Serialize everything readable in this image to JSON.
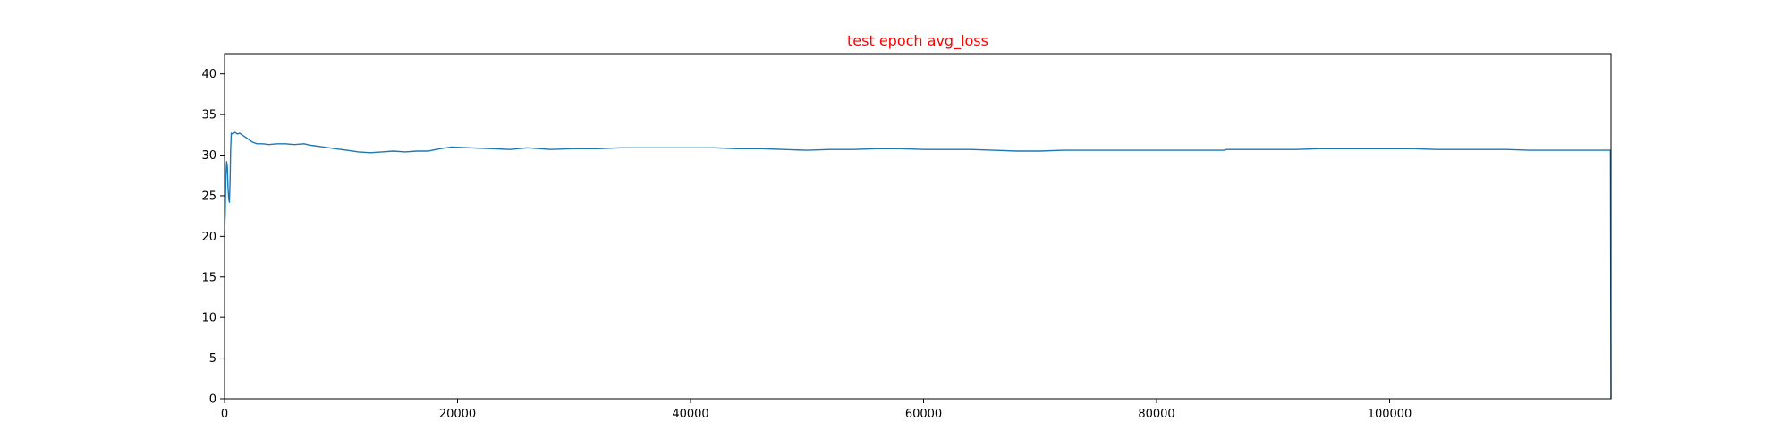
{
  "chart_data": {
    "type": "line",
    "title": "test epoch avg_loss",
    "title_color": "#ff0000",
    "xlabel": "",
    "ylabel": "",
    "xlim": [
      0,
      119000
    ],
    "ylim": [
      0,
      42.5
    ],
    "x_ticks": [
      0,
      20000,
      40000,
      60000,
      80000,
      100000
    ],
    "y_ticks": [
      0,
      5,
      10,
      15,
      20,
      25,
      30,
      35,
      40
    ],
    "grid": false,
    "legend": "none",
    "series": [
      {
        "color": "#1f77b4",
        "points": [
          [
            0,
            20.2
          ],
          [
            60,
            23.0
          ],
          [
            120,
            27.5
          ],
          [
            180,
            29.2
          ],
          [
            240,
            28.6
          ],
          [
            300,
            26.0
          ],
          [
            360,
            24.6
          ],
          [
            420,
            24.2
          ],
          [
            480,
            27.0
          ],
          [
            520,
            30.5
          ],
          [
            580,
            32.7
          ],
          [
            700,
            32.6
          ],
          [
            900,
            32.8
          ],
          [
            1100,
            32.6
          ],
          [
            1300,
            32.7
          ],
          [
            1500,
            32.5
          ],
          [
            1800,
            32.2
          ],
          [
            2100,
            31.9
          ],
          [
            2400,
            31.6
          ],
          [
            2800,
            31.4
          ],
          [
            3300,
            31.4
          ],
          [
            3800,
            31.3
          ],
          [
            4500,
            31.4
          ],
          [
            5200,
            31.4
          ],
          [
            6000,
            31.3
          ],
          [
            6800,
            31.4
          ],
          [
            7500,
            31.2
          ],
          [
            8500,
            31.0
          ],
          [
            9500,
            30.8
          ],
          [
            10500,
            30.6
          ],
          [
            11500,
            30.4
          ],
          [
            12500,
            30.3
          ],
          [
            13500,
            30.4
          ],
          [
            14500,
            30.5
          ],
          [
            15500,
            30.4
          ],
          [
            16500,
            30.5
          ],
          [
            17500,
            30.5
          ],
          [
            18500,
            30.8
          ],
          [
            19500,
            31.0
          ],
          [
            21000,
            30.9
          ],
          [
            23000,
            30.8
          ],
          [
            24500,
            30.7
          ],
          [
            26000,
            30.9
          ],
          [
            28000,
            30.7
          ],
          [
            30000,
            30.8
          ],
          [
            32000,
            30.8
          ],
          [
            34000,
            30.9
          ],
          [
            36000,
            30.9
          ],
          [
            38000,
            30.9
          ],
          [
            40000,
            30.9
          ],
          [
            42000,
            30.9
          ],
          [
            44000,
            30.8
          ],
          [
            46000,
            30.8
          ],
          [
            48000,
            30.7
          ],
          [
            50000,
            30.6
          ],
          [
            52000,
            30.7
          ],
          [
            54000,
            30.7
          ],
          [
            56000,
            30.8
          ],
          [
            58000,
            30.8
          ],
          [
            60000,
            30.7
          ],
          [
            62000,
            30.7
          ],
          [
            64000,
            30.7
          ],
          [
            66000,
            30.6
          ],
          [
            68000,
            30.5
          ],
          [
            70000,
            30.5
          ],
          [
            72000,
            30.6
          ],
          [
            74000,
            30.6
          ],
          [
            76000,
            30.6
          ],
          [
            78000,
            30.6
          ],
          [
            80000,
            30.6
          ],
          [
            82000,
            30.6
          ],
          [
            84000,
            30.6
          ],
          [
            85800,
            30.6
          ],
          [
            86000,
            30.7
          ],
          [
            88000,
            30.7
          ],
          [
            90000,
            30.7
          ],
          [
            92000,
            30.7
          ],
          [
            94000,
            30.8
          ],
          [
            96000,
            30.8
          ],
          [
            98000,
            30.8
          ],
          [
            100000,
            30.8
          ],
          [
            102000,
            30.8
          ],
          [
            104000,
            30.7
          ],
          [
            106000,
            30.7
          ],
          [
            108000,
            30.7
          ],
          [
            110000,
            30.7
          ],
          [
            112000,
            30.6
          ],
          [
            114000,
            30.6
          ],
          [
            116000,
            30.6
          ],
          [
            118000,
            30.6
          ],
          [
            118950,
            30.6
          ],
          [
            119000,
            0.0
          ]
        ]
      }
    ]
  }
}
